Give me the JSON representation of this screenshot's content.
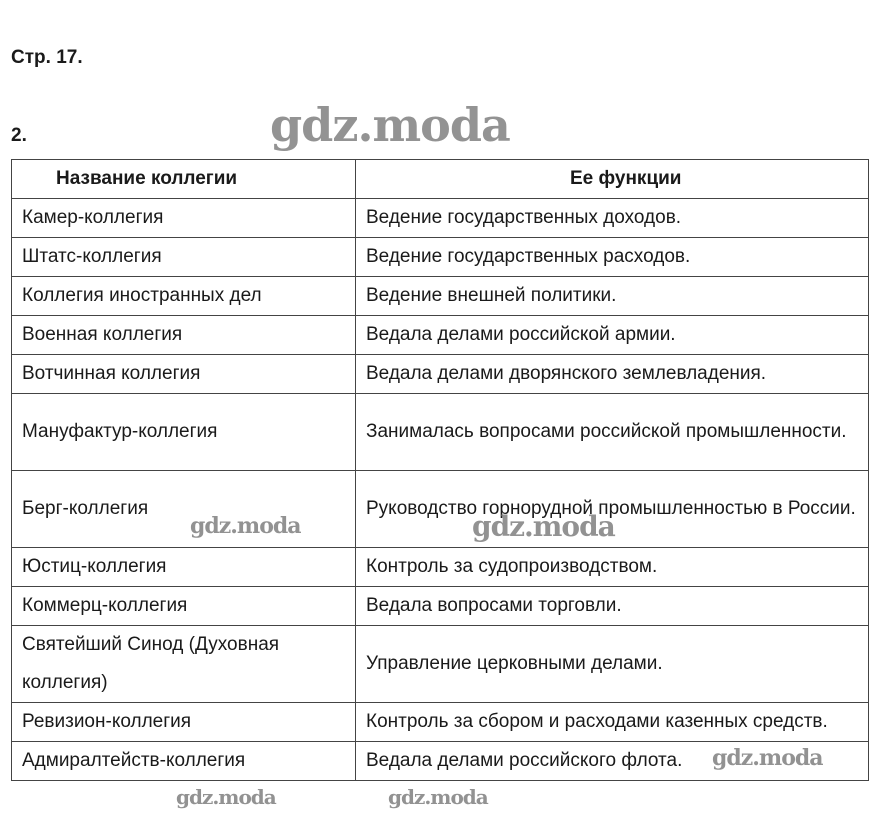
{
  "page_label": "Стр. 17.",
  "task_number": "2.",
  "table": {
    "headers": [
      "Название коллегии",
      "Ее функции"
    ],
    "rows": [
      {
        "name": "Камер-коллегия",
        "function": "Ведение государственных доходов."
      },
      {
        "name": "Штатс-коллегия",
        "function": "Ведение государственных расходов."
      },
      {
        "name": "Коллегия иностранных дел",
        "function": "Ведение внешней политики."
      },
      {
        "name": "Военная коллегия",
        "function": "Ведала делами российской армии."
      },
      {
        "name": "Вотчинная коллегия",
        "function": "Ведала делами дворянского землевладения."
      },
      {
        "name": "Мануфактур-коллегия",
        "function": "Занималась вопросами российской промышленности."
      },
      {
        "name": "Берг-коллегия",
        "function": "Руководство горнорудной промышленностью в России."
      },
      {
        "name": "Юстиц-коллегия",
        "function": "Контроль за судопроизводством."
      },
      {
        "name": "Коммерц-коллегия",
        "function": "Ведала вопросами торговли."
      },
      {
        "name": "Святейший Синод (Духовная коллегия)",
        "function": "Управление церковными делами."
      },
      {
        "name": "Ревизион-коллегия",
        "function": "Контроль за сбором и расходами казенных средств."
      },
      {
        "name": "Адмиралтейств-коллегия",
        "function": "Ведала делами российского флота."
      }
    ]
  },
  "watermark": "gdz.moda"
}
